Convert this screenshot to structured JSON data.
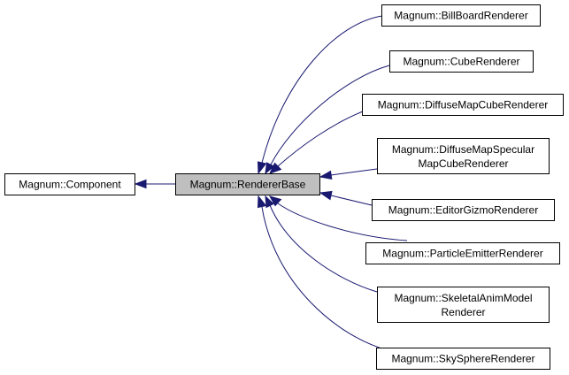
{
  "diagram": {
    "type": "inheritance-graph",
    "colors": {
      "edge": "#191970",
      "highlight_fill": "#bfbfbf",
      "node_fill": "#ffffff",
      "node_stroke": "#000000"
    },
    "nodes": {
      "component": {
        "lines": [
          "Magnum::Component"
        ]
      },
      "renderer_base": {
        "lines": [
          "Magnum::RendererBase"
        ]
      },
      "billboard_renderer": {
        "lines": [
          "Magnum::BillBoardRenderer"
        ]
      },
      "cube_renderer": {
        "lines": [
          "Magnum::CubeRenderer"
        ]
      },
      "diffuse_map_cube_renderer": {
        "lines": [
          "Magnum::DiffuseMapCubeRenderer"
        ]
      },
      "diffuse_map_specular_map_cube_renderer": {
        "lines": [
          "Magnum::DiffuseMapSpecular",
          "MapCubeRenderer"
        ]
      },
      "editor_gizmo_renderer": {
        "lines": [
          "Magnum::EditorGizmoRenderer"
        ]
      },
      "particle_emitter_renderer": {
        "lines": [
          "Magnum::ParticleEmitterRenderer"
        ]
      },
      "skeletal_anim_model_renderer": {
        "lines": [
          "Magnum::SkeletalAnimModel",
          "Renderer"
        ]
      },
      "sky_sphere_renderer": {
        "lines": [
          "Magnum::SkySphereRenderer"
        ]
      }
    }
  }
}
